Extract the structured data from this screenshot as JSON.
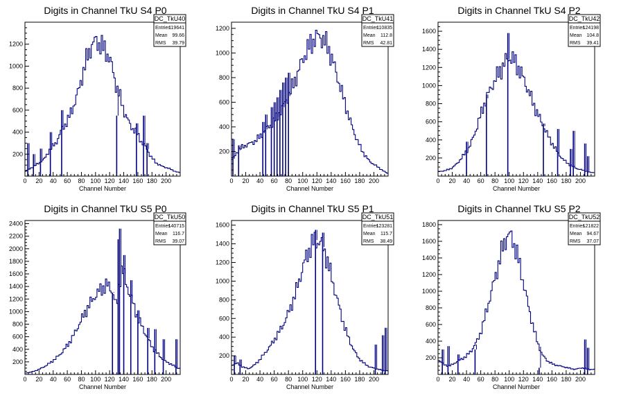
{
  "canvas": {
    "background": "#ffffff",
    "line_color": "#00007f"
  },
  "chart_data": [
    {
      "type": "histogram",
      "title": "Digits in Channel TkU S4 P0",
      "xlabel": "Channel Number",
      "ylabel": "",
      "xlim": [
        0,
        220
      ],
      "ylim": [
        0,
        1400
      ],
      "xticks": [
        0,
        20,
        40,
        60,
        80,
        100,
        120,
        140,
        160,
        180,
        200
      ],
      "yticks": [
        200,
        400,
        600,
        800,
        1000,
        1200
      ],
      "stats": {
        "name": "DC_TkU40",
        "entries_label": "Entries",
        "entries": "119641",
        "mean_label": "Mean",
        "mean": "99.66",
        "rms_label": "RMS",
        "rms": "39.79"
      },
      "bins": [
        [
          0,
          40
        ],
        [
          10,
          80
        ],
        [
          20,
          120
        ],
        [
          28,
          160
        ],
        [
          36,
          250
        ],
        [
          44,
          300
        ],
        [
          52,
          420
        ],
        [
          60,
          500
        ],
        [
          68,
          620
        ],
        [
          76,
          780
        ],
        [
          82,
          930
        ],
        [
          88,
          1080
        ],
        [
          94,
          1180
        ],
        [
          100,
          1230
        ],
        [
          106,
          1200
        ],
        [
          112,
          1160
        ],
        [
          118,
          1100
        ],
        [
          124,
          980
        ],
        [
          130,
          800
        ],
        [
          136,
          700
        ],
        [
          142,
          560
        ],
        [
          148,
          480
        ],
        [
          154,
          420
        ],
        [
          160,
          380
        ],
        [
          166,
          300
        ],
        [
          172,
          260
        ],
        [
          178,
          180
        ],
        [
          186,
          120
        ],
        [
          194,
          90
        ],
        [
          204,
          70
        ],
        [
          214,
          40
        ],
        [
          220,
          30
        ]
      ],
      "spikes": [
        [
          4,
          300
        ],
        [
          12,
          200
        ],
        [
          22,
          250
        ],
        [
          36,
          400
        ],
        [
          52,
          600
        ],
        [
          130,
          550
        ],
        [
          158,
          480
        ],
        [
          168,
          550
        ],
        [
          173,
          300
        ]
      ]
    },
    {
      "type": "histogram",
      "title": "Digits in Channel TkU S4 P1",
      "xlabel": "Channel Number",
      "ylabel": "",
      "xlim": [
        0,
        220
      ],
      "ylim": [
        0,
        1250
      ],
      "xticks": [
        0,
        20,
        40,
        60,
        80,
        100,
        120,
        140,
        160,
        180,
        200
      ],
      "yticks": [
        200,
        400,
        600,
        800,
        1000,
        1200
      ],
      "stats": {
        "name": "DC_TkU41",
        "entries_label": "Entries",
        "entries": "110835",
        "mean_label": "Mean",
        "mean": "112.8",
        "rms_label": "RMS",
        "rms": "42.81"
      },
      "bins": [
        [
          0,
          120
        ],
        [
          8,
          200
        ],
        [
          16,
          240
        ],
        [
          24,
          260
        ],
        [
          32,
          280
        ],
        [
          40,
          320
        ],
        [
          48,
          380
        ],
        [
          56,
          420
        ],
        [
          64,
          480
        ],
        [
          72,
          560
        ],
        [
          80,
          650
        ],
        [
          88,
          760
        ],
        [
          94,
          850
        ],
        [
          100,
          950
        ],
        [
          106,
          1020
        ],
        [
          112,
          1080
        ],
        [
          118,
          1120
        ],
        [
          124,
          1140
        ],
        [
          130,
          1100
        ],
        [
          136,
          1040
        ],
        [
          142,
          940
        ],
        [
          148,
          820
        ],
        [
          154,
          700
        ],
        [
          160,
          580
        ],
        [
          166,
          460
        ],
        [
          172,
          360
        ],
        [
          178,
          270
        ],
        [
          186,
          180
        ],
        [
          194,
          120
        ],
        [
          204,
          80
        ],
        [
          214,
          40
        ],
        [
          220,
          20
        ]
      ],
      "spikes": [
        [
          2,
          300
        ],
        [
          10,
          250
        ],
        [
          44,
          440
        ],
        [
          48,
          500
        ],
        [
          56,
          560
        ],
        [
          60,
          600
        ],
        [
          64,
          640
        ],
        [
          68,
          700
        ],
        [
          72,
          760
        ],
        [
          76,
          800
        ],
        [
          80,
          840
        ]
      ]
    },
    {
      "type": "histogram",
      "title": "Digits in Channel TkU S4 P2",
      "xlabel": "Channel Number",
      "ylabel": "",
      "xlim": [
        0,
        220
      ],
      "ylim": [
        0,
        1700
      ],
      "xticks": [
        0,
        20,
        40,
        60,
        80,
        100,
        120,
        140,
        160,
        180,
        200
      ],
      "yticks": [
        200,
        400,
        600,
        800,
        1000,
        1200,
        1400,
        1600
      ],
      "stats": {
        "name": "DC_TkU42",
        "entries_label": "Entries",
        "entries": "124198",
        "mean_label": "Mean",
        "mean": "104.8",
        "rms_label": "RMS",
        "rms": "39.41"
      },
      "bins": [
        [
          0,
          50
        ],
        [
          10,
          60
        ],
        [
          20,
          90
        ],
        [
          28,
          150
        ],
        [
          36,
          230
        ],
        [
          44,
          320
        ],
        [
          52,
          480
        ],
        [
          60,
          680
        ],
        [
          68,
          860
        ],
        [
          76,
          1000
        ],
        [
          84,
          1120
        ],
        [
          90,
          1200
        ],
        [
          96,
          1280
        ],
        [
          102,
          1320
        ],
        [
          108,
          1260
        ],
        [
          114,
          1180
        ],
        [
          120,
          1080
        ],
        [
          126,
          960
        ],
        [
          132,
          840
        ],
        [
          138,
          720
        ],
        [
          144,
          620
        ],
        [
          150,
          520
        ],
        [
          156,
          420
        ],
        [
          162,
          340
        ],
        [
          168,
          260
        ],
        [
          176,
          180
        ],
        [
          186,
          120
        ],
        [
          196,
          80
        ],
        [
          206,
          60
        ],
        [
          214,
          40
        ]
      ],
      "spikes": [
        [
          40,
          380
        ],
        [
          68,
          900
        ],
        [
          98,
          1580
        ],
        [
          148,
          580
        ],
        [
          168,
          520
        ],
        [
          186,
          300
        ],
        [
          190,
          500
        ],
        [
          206,
          360
        ],
        [
          210,
          220
        ]
      ]
    },
    {
      "type": "histogram",
      "title": "Digits in Channel TkU S5 P0",
      "xlabel": "Channel Number",
      "ylabel": "",
      "xlim": [
        0,
        220
      ],
      "ylim": [
        0,
        2450
      ],
      "xticks": [
        0,
        20,
        40,
        60,
        80,
        100,
        120,
        140,
        160,
        180,
        200
      ],
      "yticks": [
        200,
        400,
        600,
        800,
        1000,
        1200,
        1400,
        1600,
        1800,
        2000,
        2200,
        2400
      ],
      "stats": {
        "name": "DC_TkU50",
        "entries_label": "Entries",
        "entries": "140715",
        "mean_label": "Mean",
        "mean": "116.7",
        "rms_label": "RMS",
        "rms": "39.07"
      },
      "bins": [
        [
          0,
          20
        ],
        [
          10,
          40
        ],
        [
          20,
          80
        ],
        [
          30,
          140
        ],
        [
          40,
          220
        ],
        [
          50,
          320
        ],
        [
          60,
          460
        ],
        [
          68,
          600
        ],
        [
          76,
          780
        ],
        [
          84,
          960
        ],
        [
          92,
          1120
        ],
        [
          100,
          1260
        ],
        [
          108,
          1360
        ],
        [
          116,
          1420
        ],
        [
          122,
          1380
        ],
        [
          126,
          1240
        ],
        [
          130,
          1060
        ],
        [
          134,
          1500
        ],
        [
          138,
          1700
        ],
        [
          142,
          1500
        ],
        [
          148,
          1300
        ],
        [
          154,
          1100
        ],
        [
          160,
          900
        ],
        [
          166,
          760
        ],
        [
          172,
          620
        ],
        [
          178,
          480
        ],
        [
          184,
          380
        ],
        [
          192,
          280
        ],
        [
          200,
          200
        ],
        [
          208,
          160
        ],
        [
          216,
          100
        ]
      ],
      "spikes": [
        [
          124,
          1300
        ],
        [
          132,
          2150
        ],
        [
          134,
          2320
        ],
        [
          140,
          1900
        ],
        [
          150,
          1500
        ],
        [
          160,
          1020
        ],
        [
          174,
          740
        ],
        [
          184,
          720
        ],
        [
          196,
          560
        ],
        [
          214,
          560
        ]
      ]
    },
    {
      "type": "histogram",
      "title": "Digits in Channel TkU S5 P1",
      "xlabel": "Channel Number",
      "ylabel": "",
      "xlim": [
        0,
        220
      ],
      "ylim": [
        0,
        1650
      ],
      "xticks": [
        0,
        20,
        40,
        60,
        80,
        100,
        120,
        140,
        160,
        180,
        200
      ],
      "yticks": [
        200,
        400,
        600,
        800,
        1000,
        1200,
        1400,
        1600
      ],
      "stats": {
        "name": "DC_TkU51",
        "entries_label": "Entries",
        "entries": "123281",
        "mean_label": "Mean",
        "mean": "115.7",
        "rms_label": "RMS",
        "rms": "38.49"
      },
      "bins": [
        [
          0,
          100
        ],
        [
          8,
          120
        ],
        [
          16,
          80
        ],
        [
          24,
          60
        ],
        [
          32,
          100
        ],
        [
          40,
          160
        ],
        [
          48,
          240
        ],
        [
          56,
          320
        ],
        [
          64,
          420
        ],
        [
          72,
          520
        ],
        [
          80,
          660
        ],
        [
          88,
          820
        ],
        [
          94,
          980
        ],
        [
          100,
          1140
        ],
        [
          106,
          1280
        ],
        [
          112,
          1380
        ],
        [
          118,
          1440
        ],
        [
          124,
          1420
        ],
        [
          130,
          1340
        ],
        [
          136,
          1180
        ],
        [
          142,
          1000
        ],
        [
          148,
          820
        ],
        [
          154,
          640
        ],
        [
          160,
          480
        ],
        [
          166,
          360
        ],
        [
          172,
          260
        ],
        [
          178,
          180
        ],
        [
          186,
          120
        ],
        [
          194,
          80
        ],
        [
          204,
          60
        ],
        [
          214,
          40
        ]
      ],
      "spikes": [
        [
          4,
          200
        ],
        [
          12,
          160
        ],
        [
          118,
          1550
        ],
        [
          128,
          1520
        ],
        [
          202,
          320
        ],
        [
          212,
          420
        ],
        [
          216,
          500
        ]
      ]
    },
    {
      "type": "histogram",
      "title": "Digits in Channel TkU S5 P2",
      "xlabel": "Channel Number",
      "ylabel": "",
      "xlim": [
        0,
        220
      ],
      "ylim": [
        0,
        1850
      ],
      "xticks": [
        0,
        20,
        40,
        60,
        80,
        100,
        120,
        140,
        160,
        180,
        200
      ],
      "yticks": [
        200,
        400,
        600,
        800,
        1000,
        1200,
        1400,
        1600,
        1800
      ],
      "stats": {
        "name": "DC_TkU52",
        "entries_label": "Entries",
        "entries": "121822",
        "mean_label": "Mean",
        "mean": "94.67",
        "rms_label": "RMS",
        "rms": "37.07"
      },
      "bins": [
        [
          0,
          180
        ],
        [
          8,
          120
        ],
        [
          16,
          100
        ],
        [
          24,
          140
        ],
        [
          32,
          180
        ],
        [
          40,
          220
        ],
        [
          48,
          300
        ],
        [
          56,
          420
        ],
        [
          62,
          560
        ],
        [
          68,
          760
        ],
        [
          74,
          960
        ],
        [
          80,
          1160
        ],
        [
          86,
          1360
        ],
        [
          92,
          1560
        ],
        [
          98,
          1680
        ],
        [
          104,
          1640
        ],
        [
          110,
          1480
        ],
        [
          116,
          1260
        ],
        [
          122,
          1020
        ],
        [
          128,
          780
        ],
        [
          134,
          560
        ],
        [
          140,
          380
        ],
        [
          146,
          240
        ],
        [
          154,
          160
        ],
        [
          162,
          120
        ],
        [
          172,
          100
        ],
        [
          182,
          80
        ],
        [
          192,
          60
        ],
        [
          202,
          80
        ],
        [
          212,
          60
        ]
      ],
      "spikes": [
        [
          6,
          300
        ],
        [
          14,
          340
        ],
        [
          28,
          240
        ],
        [
          52,
          300
        ],
        [
          142,
          80
        ],
        [
          206,
          420
        ],
        [
          210,
          320
        ]
      ]
    }
  ]
}
